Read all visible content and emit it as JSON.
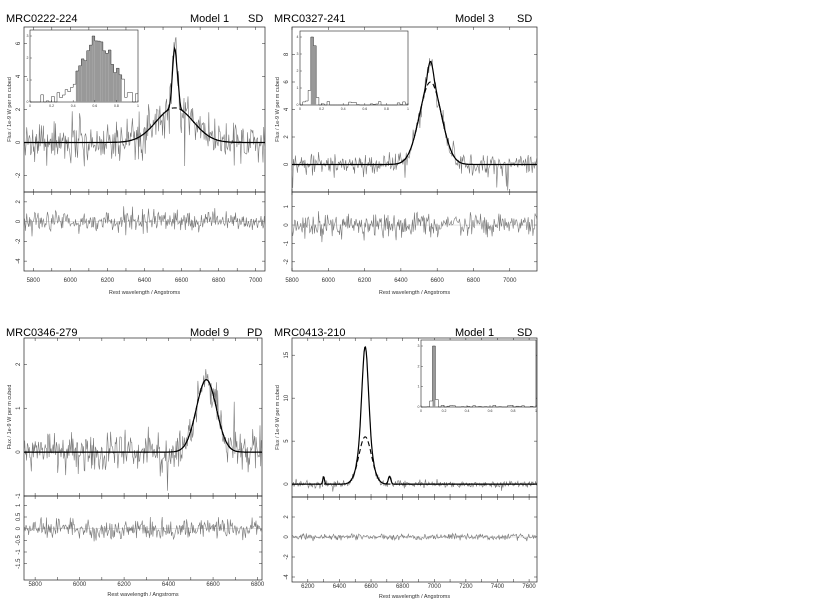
{
  "chart_data": [
    {
      "type": "line",
      "object": "MRC0222-224",
      "model": "Model 1",
      "class": "SD",
      "xlabel": "Rest wavelength / Angstroms",
      "ylabel": "Flux / 1e-9 W per m cubed",
      "xlim": [
        5750,
        7050
      ],
      "xticks": [
        5800,
        5900,
        6000,
        6100,
        6200,
        6300,
        6400,
        6500,
        6600,
        6700,
        6800,
        6900,
        7000
      ],
      "top_ylim": [
        -3,
        7
      ],
      "top_yticks": [
        -2,
        0,
        2,
        4,
        6
      ],
      "res_ylim": [
        -5,
        3
      ],
      "res_yticks": [
        -4,
        -2,
        0,
        2
      ],
      "line": {
        "center": 6563,
        "broad_sigma": 100,
        "broad_amp": 2.1,
        "narrow_amp": 3.6,
        "narrow_sigma": 12,
        "noise": 0.9,
        "res_noise": 0.9
      },
      "inset": {
        "xticks": [
          "0",
          "0.2",
          "0.4",
          "0.6",
          "0.8",
          "1"
        ],
        "yticks": [
          "0",
          "1",
          "2",
          "3"
        ]
      }
    },
    {
      "type": "line",
      "object": "MRC0327-241",
      "model": "Model 3",
      "class": "SD",
      "xlabel": "Rest wavelength / Angstroms",
      "ylabel": "Flux / 1e-9 W per m cubed",
      "xlim": [
        5800,
        7150
      ],
      "xticks": [
        5800,
        6000,
        6200,
        6400,
        6600,
        6800,
        7000
      ],
      "top_ylim": [
        -2,
        10
      ],
      "top_yticks": [
        0,
        2,
        4,
        6,
        8
      ],
      "res_ylim": [
        -2.5,
        1.8
      ],
      "res_yticks": [
        -2,
        -1,
        0,
        1
      ],
      "line": {
        "center": 6563,
        "broad_sigma": 60,
        "broad_amp": 6.0,
        "narrow_amp": 1.5,
        "narrow_sigma": 15,
        "noise": 0.5,
        "res_noise": 0.5
      },
      "inset": {
        "xticks": [
          "0",
          "0.2",
          "0.4",
          "0.6",
          "0.8",
          "1"
        ],
        "yticks": [
          "0",
          "1",
          "2",
          "3",
          "4"
        ]
      }
    },
    {
      "type": "line",
      "object": "MRC0346-279",
      "model": "Model 9",
      "class": "PD",
      "xlabel": "Rest wavelength / Angstroms",
      "ylabel": "Flux / 1e-9 W per m cubed",
      "xlim": [
        5750,
        6820
      ],
      "xticks": [
        5800,
        5900,
        6000,
        6100,
        6200,
        6300,
        6400,
        6500,
        6600,
        6700,
        6800
      ],
      "top_ylim": [
        -1,
        2.6
      ],
      "top_yticks": [
        -1,
        0,
        1,
        2
      ],
      "res_ylim": [
        -2.2,
        1.4
      ],
      "res_yticks": [
        -1.5,
        -1,
        -0.5,
        0,
        0.5,
        1
      ],
      "line": {
        "center": 6570,
        "broad_sigma": 45,
        "broad_amp": 1.65,
        "narrow_amp": 0.0,
        "narrow_sigma": 10,
        "noise": 0.3,
        "res_noise": 0.35
      },
      "inset": null
    },
    {
      "type": "line",
      "object": "MRC0413-210",
      "model": "Model 1",
      "class": "SD",
      "xlabel": "Rest wavelength / Angstroms",
      "ylabel": "Flux / 1e-9 W per m cubed",
      "xlim": [
        6100,
        7650
      ],
      "xticks": [
        6200,
        6300,
        6400,
        6500,
        6600,
        6700,
        6800,
        6900,
        7000,
        7100,
        7200,
        7300,
        7400,
        7500,
        7600
      ],
      "top_ylim": [
        -1.5,
        17
      ],
      "top_yticks": [
        0,
        5,
        10,
        15
      ],
      "res_ylim": [
        -4.5,
        4
      ],
      "res_yticks": [
        -4,
        -2,
        0,
        2
      ],
      "line": {
        "center": 6563,
        "broad_sigma": 40,
        "broad_amp": 5.5,
        "narrow_amp": 10.5,
        "narrow_sigma": 20,
        "noise": 0.3,
        "res_noise": 0.25
      },
      "inset": {
        "xticks": [
          "0",
          "0.2",
          "0.4",
          "0.6",
          "0.8",
          "1"
        ],
        "yticks": [
          "0",
          "1",
          "2",
          "3"
        ]
      }
    }
  ]
}
